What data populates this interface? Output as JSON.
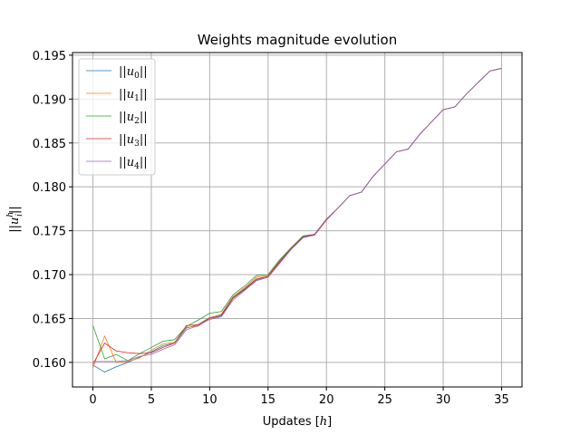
{
  "chart_data": {
    "type": "line",
    "title": "Weights magnitude evolution",
    "xlabel": "Updates [h]",
    "ylabel": "||u_i^h||",
    "xlim": [
      -1.75,
      36.75
    ],
    "ylim": [
      0.1572,
      0.1953
    ],
    "xticks": [
      0,
      5,
      10,
      15,
      20,
      25,
      30,
      35
    ],
    "yticks": [
      0.16,
      0.165,
      0.17,
      0.175,
      0.18,
      0.185,
      0.19,
      0.195
    ],
    "grid": true,
    "legend_position": "top-left",
    "x": [
      0,
      1,
      2,
      3,
      4,
      5,
      6,
      7,
      8,
      9,
      10,
      11,
      12,
      13,
      14,
      15,
      16,
      17,
      18,
      19,
      20,
      21,
      22,
      23,
      24,
      25,
      26,
      27,
      28,
      29,
      30,
      31,
      32,
      33,
      34,
      35
    ],
    "series": [
      {
        "name": "||u_0||",
        "color": "#1f77b4",
        "values": [
          0.1597,
          0.1589,
          0.1595,
          0.16,
          0.1606,
          0.1612,
          0.1619,
          0.1622,
          0.1639,
          0.1643,
          0.165,
          0.1653,
          0.1673,
          0.1683,
          0.1694,
          0.1698,
          0.1714,
          0.173,
          0.1743,
          0.1746,
          0.1763,
          0.1776,
          0.179,
          0.1794,
          0.1812,
          0.1826,
          0.184,
          0.1843,
          0.186,
          0.1874,
          0.1888,
          0.1891,
          0.1906,
          0.1919,
          0.1932,
          0.1935
        ]
      },
      {
        "name": "||u_1||",
        "color": "#ff7f0e",
        "values": [
          0.1594,
          0.163,
          0.16,
          0.1601,
          0.1605,
          0.1614,
          0.1621,
          0.1623,
          0.164,
          0.1641,
          0.165,
          0.1655,
          0.1675,
          0.1685,
          0.1697,
          0.1699,
          0.1716,
          0.1731,
          0.1744,
          0.1746,
          0.1763,
          0.1776,
          0.179,
          0.1794,
          0.1812,
          0.1826,
          0.184,
          0.1843,
          0.186,
          0.1874,
          0.1888,
          0.1891,
          0.1906,
          0.1919,
          0.1932,
          0.1935
        ]
      },
      {
        "name": "||u_2||",
        "color": "#2ca02c",
        "values": [
          0.1642,
          0.1604,
          0.1609,
          0.1602,
          0.161,
          0.1617,
          0.1624,
          0.1626,
          0.1641,
          0.1648,
          0.1656,
          0.1658,
          0.1677,
          0.1687,
          0.1699,
          0.17,
          0.1717,
          0.1731,
          0.1744,
          0.1746,
          0.1763,
          0.1776,
          0.179,
          0.1794,
          0.1812,
          0.1826,
          0.184,
          0.1843,
          0.186,
          0.1874,
          0.1888,
          0.1891,
          0.1906,
          0.1919,
          0.1932,
          0.1935
        ]
      },
      {
        "name": "||u_3||",
        "color": "#d62728",
        "values": [
          0.1598,
          0.1622,
          0.1613,
          0.1611,
          0.161,
          0.1611,
          0.1617,
          0.1622,
          0.1642,
          0.1643,
          0.1651,
          0.1654,
          0.1674,
          0.1684,
          0.1695,
          0.1698,
          0.1715,
          0.173,
          0.1743,
          0.1746,
          0.1763,
          0.1776,
          0.179,
          0.1794,
          0.1812,
          0.1826,
          0.184,
          0.1843,
          0.186,
          0.1874,
          0.1888,
          0.1891,
          0.1906,
          0.1919,
          0.1932,
          0.1935
        ]
      },
      {
        "name": "||u_4||",
        "color": "#9467bd",
        "values": [
          0.1601,
          0.1601,
          0.1601,
          0.1602,
          0.1607,
          0.1609,
          0.1615,
          0.162,
          0.1637,
          0.1642,
          0.1649,
          0.1652,
          0.1671,
          0.1682,
          0.1693,
          0.1697,
          0.1713,
          0.1729,
          0.1742,
          0.1745,
          0.1762,
          0.1776,
          0.179,
          0.1794,
          0.1812,
          0.1826,
          0.184,
          0.1843,
          0.186,
          0.1874,
          0.1888,
          0.1891,
          0.1906,
          0.1919,
          0.1932,
          0.1935
        ]
      }
    ]
  }
}
